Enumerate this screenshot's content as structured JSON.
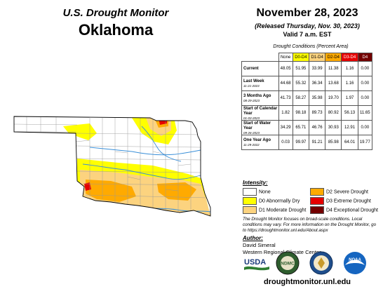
{
  "header": {
    "monitor_title": "U.S. Drought Monitor",
    "state": "Oklahoma",
    "date": "November 28, 2023",
    "released": "(Released Thursday, Nov. 30, 2023)",
    "valid": "Valid 7 a.m. EST"
  },
  "table": {
    "caption": "Drought Conditions (Percent Area)",
    "columns": [
      "None",
      "D0-D4",
      "D1-D4",
      "D2-D4",
      "D3-D4",
      "D4"
    ],
    "column_colors": [
      "#ffffff",
      "#ffff00",
      "#fcd37f",
      "#ffaa00",
      "#e60000",
      "#730000"
    ],
    "rows": [
      {
        "label": "Current",
        "date": "",
        "values": [
          "48.05",
          "51.95",
          "33.99",
          "11.38",
          "1.16",
          "0.00"
        ]
      },
      {
        "label": "Last Week",
        "date": "11-21-2023",
        "values": [
          "44.68",
          "55.32",
          "36.34",
          "13.68",
          "1.16",
          "0.00"
        ]
      },
      {
        "label": "3 Months Ago",
        "date": "08-29-2023",
        "values": [
          "41.73",
          "58.27",
          "35.98",
          "19.70",
          "1.97",
          "0.00"
        ]
      },
      {
        "label": "Start of Calendar Year",
        "date": "01-03-2023",
        "values": [
          "1.82",
          "98.18",
          "89.73",
          "80.92",
          "56.13",
          "11.65"
        ]
      },
      {
        "label": "Start of Water Year",
        "date": "09-26-2023",
        "values": [
          "34.29",
          "65.71",
          "46.76",
          "30.93",
          "12.91",
          "0.00"
        ]
      },
      {
        "label": "One Year Ago",
        "date": "11-29-2022",
        "values": [
          "0.03",
          "99.97",
          "91.21",
          "85.98",
          "64.01",
          "19.77"
        ]
      }
    ]
  },
  "legend": {
    "title": "Intensity:",
    "items": [
      {
        "label": "None",
        "color": "#ffffff"
      },
      {
        "label": "D0 Abnormally Dry",
        "color": "#ffff00"
      },
      {
        "label": "D1 Moderate Drought",
        "color": "#fcd37f"
      },
      {
        "label": "D2 Severe Drought",
        "color": "#ffaa00"
      },
      {
        "label": "D3 Extreme Drought",
        "color": "#e60000"
      },
      {
        "label": "D4 Exceptional Drought",
        "color": "#730000"
      }
    ]
  },
  "note": "The Drought Monitor focuses on broad-scale conditions. Local conditions may vary. For more information on the Drought Monitor, go to https://droughtmonitor.unl.edu/About.aspx",
  "author": {
    "title": "Author:",
    "name": "David Simeral",
    "org": "Western Regional Climate Center"
  },
  "logos": {
    "usda": "USDA",
    "ndmc": "NDMC",
    "noaa": "NOAA"
  },
  "url": "droughtmonitor.unl.edu"
}
